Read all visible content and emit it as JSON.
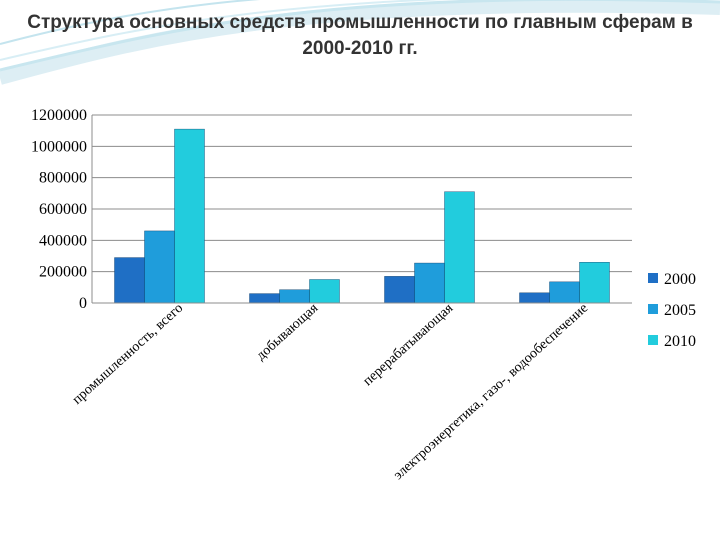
{
  "slide": {
    "title": "Структура основных средств промышленности по главным сферам в 2000-2010 гг."
  },
  "chart_data": {
    "type": "bar",
    "title": "",
    "xlabel": "",
    "ylabel": "",
    "ylim": [
      0,
      1200000
    ],
    "yticks": [
      "0",
      "200000",
      "400000",
      "600000",
      "800000",
      "1000000",
      "1200000"
    ],
    "grid": true,
    "legend_position": "right",
    "categories": [
      "промышленность, всего",
      "добывающая",
      "перерабатывающая",
      "электроэнергетика, газо-, водообеспечение"
    ],
    "series": [
      {
        "name": "2000",
        "color": "#1F6FC5",
        "values": [
          290000,
          60000,
          170000,
          65000
        ]
      },
      {
        "name": "2005",
        "color": "#1F9DDB",
        "values": [
          460000,
          85000,
          255000,
          135000
        ]
      },
      {
        "name": "2010",
        "color": "#22CCDD",
        "values": [
          1110000,
          150000,
          710000,
          260000
        ]
      }
    ]
  }
}
